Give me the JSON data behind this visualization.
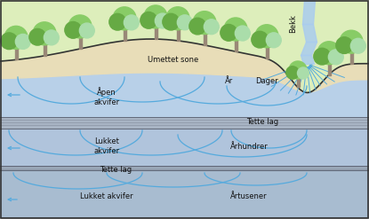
{
  "figsize": [
    4.15,
    2.47
  ],
  "dpi": 100,
  "bg_color": "#ffffff",
  "hill_color": "#ddeebb",
  "unsaturated_color": "#e8ddb8",
  "open_aquifer_color": "#b8d0e8",
  "tette_lag_color": "#a8b4c4",
  "closed_aquifer1_color": "#b0c4dc",
  "tette_lag2_color": "#a0b0c0",
  "closed_aquifer2_color": "#a8bcd0",
  "water_line_color": "#55aadd",
  "stream_color": "#aaccee",
  "stripe_color": "#909aaa",
  "border_color": "#444444",
  "tree_foliage1": "#88cc66",
  "tree_foliage2": "#66aa44",
  "tree_foliage3": "#aaddaa",
  "tree_trunk": "#998877",
  "labels": {
    "umettet_sone": "Umettet sone",
    "apen_akvifer": "Åpen\nakvifer",
    "ar": "År",
    "dager": "Dager",
    "tette_lag1": "Tette lag",
    "lukket_akvifer1": "Lukket\nakvifer",
    "arhundrer": "Århundrer",
    "tette_lag2": "Tette lag",
    "lukket_akvifer2": "Lukket akvifer",
    "artusener": "Årtusener",
    "bekk": "Bekk"
  },
  "layer_y_norm": {
    "ground_base": 0.72,
    "unsat_thickness": 0.07,
    "open_aq_thickness": 0.14,
    "tette1_thickness": 0.06,
    "closed1_aq_thickness": 0.15,
    "tette2_thickness": 0.06,
    "closed2_aq_thickness": 0.14
  }
}
